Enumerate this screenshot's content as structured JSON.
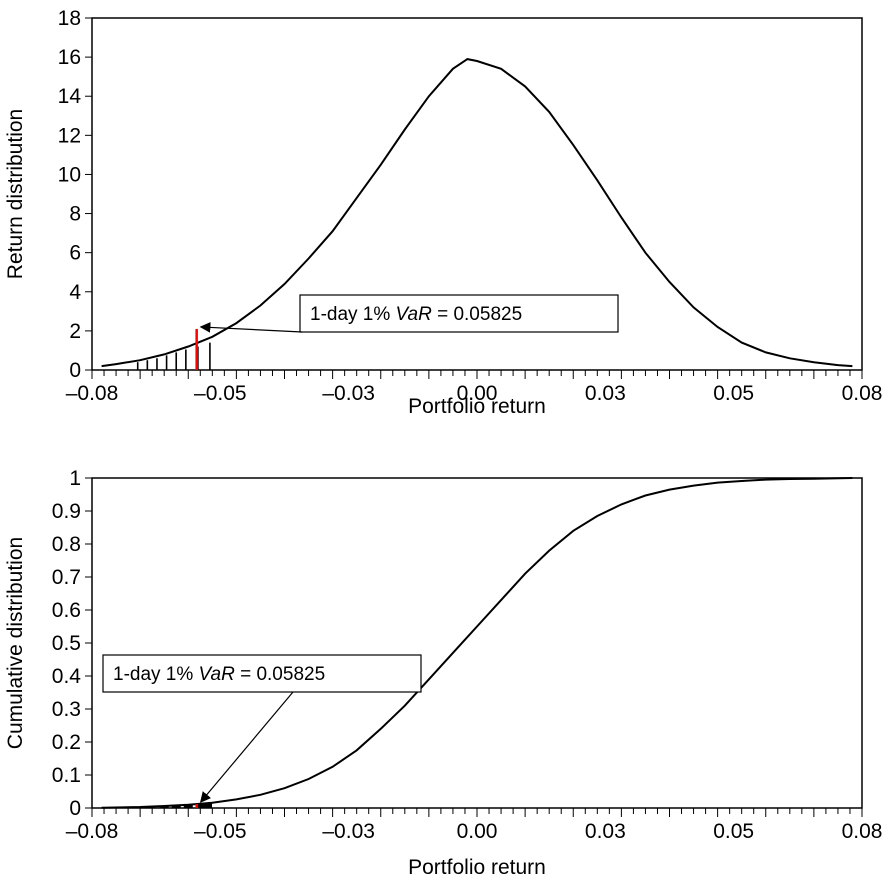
{
  "chart_data": [
    {
      "type": "line",
      "title": "",
      "xlabel": "Portfolio return",
      "ylabel": "Return distribution",
      "xlim": [
        -0.08,
        0.08
      ],
      "ylim": [
        0,
        18
      ],
      "x_tick_labels": [
        "–0.08",
        "–0.05",
        "–0.03",
        "0.00",
        "0.03",
        "0.05",
        "0.08"
      ],
      "y_tick_values": [
        0,
        2,
        4,
        6,
        8,
        10,
        12,
        14,
        16,
        18
      ],
      "y_tick_labels": [
        "0",
        "2",
        "4",
        "6",
        "8",
        "10",
        "12",
        "14",
        "16",
        "18"
      ],
      "grid": false,
      "series": [
        {
          "x": [
            -0.078,
            -0.075,
            -0.07,
            -0.065,
            -0.06,
            -0.055,
            -0.05,
            -0.045,
            -0.04,
            -0.035,
            -0.03,
            -0.025,
            -0.02,
            -0.015,
            -0.01,
            -0.005,
            -0.002,
            0.0,
            0.005,
            0.01,
            0.015,
            0.02,
            0.025,
            0.03,
            0.035,
            0.04,
            0.045,
            0.05,
            0.055,
            0.06,
            0.065,
            0.07,
            0.075,
            0.078
          ],
          "y": [
            0.2,
            0.3,
            0.5,
            0.8,
            1.2,
            1.7,
            2.4,
            3.3,
            4.4,
            5.7,
            7.1,
            8.8,
            10.5,
            12.3,
            14.0,
            15.4,
            15.9,
            15.8,
            15.4,
            14.5,
            13.2,
            11.5,
            9.7,
            7.8,
            6.0,
            4.5,
            3.2,
            2.2,
            1.4,
            0.9,
            0.6,
            0.4,
            0.25,
            0.2
          ]
        }
      ],
      "tail_bars": {
        "x": [
          -0.0705,
          -0.0685,
          -0.0665,
          -0.0645,
          -0.0625,
          -0.0605,
          -0.058,
          -0.0555
        ],
        "y": [
          0.4,
          0.5,
          0.6,
          0.75,
          0.9,
          1.05,
          1.2,
          1.4
        ]
      },
      "var_marker": {
        "x": -0.05825,
        "y": 2.1,
        "color": "#ff0000"
      },
      "annotation": {
        "prefix": "1-day 1% ",
        "italic": "VaR",
        "suffix": " = 0.05825"
      }
    },
    {
      "type": "line",
      "title": "",
      "xlabel": "Portfolio return",
      "ylabel": "Cumulative distribution",
      "xlim": [
        -0.08,
        0.08
      ],
      "ylim": [
        0,
        1
      ],
      "x_tick_labels": [
        "–0.08",
        "–0.05",
        "–0.03",
        "0.00",
        "0.03",
        "0.05",
        "0.08"
      ],
      "y_tick_values": [
        0,
        0.1,
        0.2,
        0.3,
        0.4,
        0.5,
        0.6,
        0.7,
        0.8,
        0.9,
        1
      ],
      "y_tick_labels": [
        "0",
        "0.1",
        "0.2",
        "0.3",
        "0.4",
        "0.5",
        "0.6",
        "0.7",
        "0.8",
        "0.9",
        "1"
      ],
      "grid": false,
      "series": [
        {
          "x": [
            -0.078,
            -0.07,
            -0.065,
            -0.06,
            -0.055,
            -0.05,
            -0.045,
            -0.04,
            -0.035,
            -0.03,
            -0.025,
            -0.02,
            -0.015,
            -0.01,
            -0.005,
            0.0,
            0.005,
            0.01,
            0.015,
            0.02,
            0.025,
            0.03,
            0.035,
            0.04,
            0.045,
            0.05,
            0.055,
            0.06,
            0.065,
            0.07,
            0.078
          ],
          "y": [
            0.001,
            0.003,
            0.006,
            0.01,
            0.016,
            0.026,
            0.04,
            0.06,
            0.088,
            0.125,
            0.175,
            0.24,
            0.31,
            0.39,
            0.47,
            0.55,
            0.63,
            0.71,
            0.78,
            0.84,
            0.885,
            0.92,
            0.947,
            0.965,
            0.977,
            0.986,
            0.991,
            0.995,
            0.997,
            0.998,
            1.0
          ]
        }
      ],
      "tail_bars": {
        "x": [
          -0.065,
          -0.0625,
          -0.06,
          -0.0575,
          -0.056
        ],
        "y": [
          0.006,
          0.008,
          0.01,
          0.013,
          0.016
        ]
      },
      "var_marker": {
        "x": -0.05825,
        "y": 0.012,
        "color": "#ff0000"
      },
      "annotation": {
        "prefix": "1-day 1% ",
        "italic": "VaR",
        "suffix": " = 0.05825"
      }
    }
  ]
}
